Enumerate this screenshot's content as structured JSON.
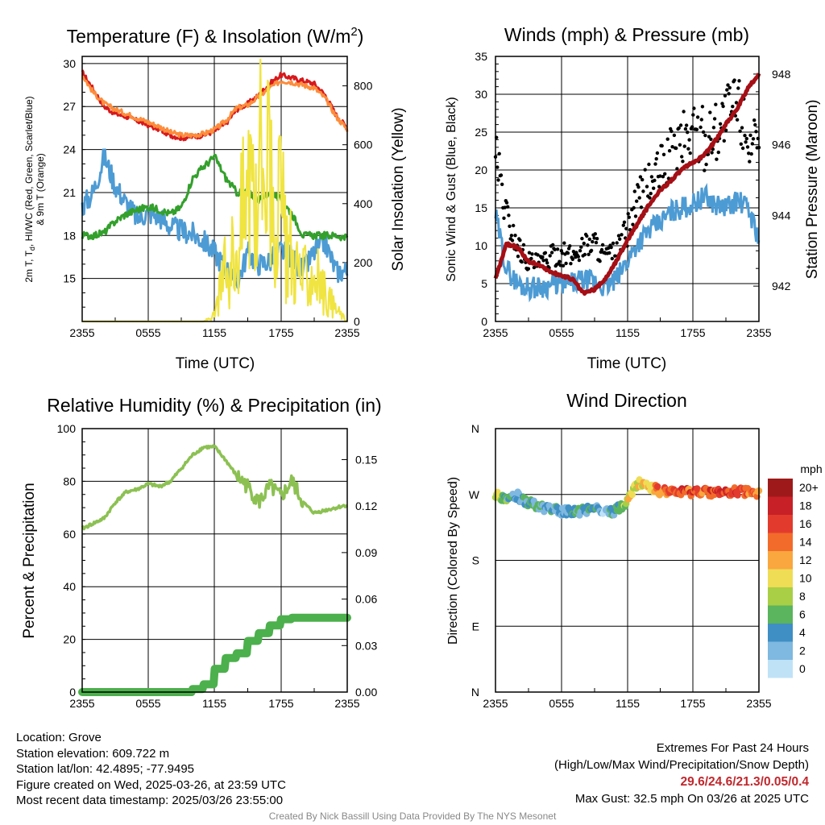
{
  "chart_data": [
    {
      "type": "line",
      "title": "Temperature (F) & Insolation (W/m²)",
      "title_main": "Temperature (F) & Insolation (W/m",
      "title_sup": "2",
      "title_end": ")",
      "xlabel": "Time (UTC)",
      "ylabel_line1": "2m T, T",
      "ylabel_sub": "d",
      "ylabel_line1_end": ", HI/WC (Red, Green, Scarlet/Blue)",
      "ylabel_line2": "& 9m T (Orange)",
      "y2label": "Solar Insolation (Yellow)",
      "x_ticks": [
        "2355",
        "0555",
        "1155",
        "1755",
        "2355"
      ],
      "y_ticks": [
        "15",
        "18",
        "21",
        "24",
        "27",
        "30"
      ],
      "y2_ticks": [
        "0",
        "200",
        "400",
        "600",
        "800"
      ],
      "ylim": [
        12,
        30.5
      ],
      "y2lim": [
        0,
        900
      ],
      "hours": [
        0,
        1,
        2,
        3,
        4,
        5,
        6,
        7,
        8,
        9,
        10,
        11,
        12,
        13,
        14,
        15,
        16,
        17,
        18,
        19,
        20,
        21,
        22,
        23,
        24
      ],
      "series": [
        {
          "color": "#d7191c",
          "values": [
            29.4,
            28.2,
            27.0,
            26.5,
            26.3,
            26.0,
            25.7,
            25.4,
            25.0,
            24.8,
            24.9,
            25.0,
            25.3,
            25.8,
            26.8,
            27.2,
            27.8,
            28.6,
            29.2,
            29.0,
            28.8,
            28.6,
            27.8,
            26.4,
            25.5
          ]
        },
        {
          "color": "#fd8d3c",
          "values": [
            29.2,
            28.0,
            27.2,
            26.8,
            26.5,
            26.2,
            25.9,
            25.6,
            25.2,
            25.0,
            25.0,
            25.1,
            25.4,
            26.0,
            26.9,
            27.1,
            27.7,
            28.3,
            28.8,
            28.7,
            28.5,
            28.3,
            27.6,
            26.3,
            25.4
          ]
        },
        {
          "color": "#4d9bd4",
          "values": [
            20.0,
            21.0,
            23.5,
            21.5,
            20.2,
            19.2,
            19.6,
            19.3,
            18.6,
            18.3,
            18.1,
            17.6,
            16.8,
            15.7,
            14.7,
            16.8,
            16.0,
            16.2,
            17.0,
            16.5,
            15.5,
            16.8,
            17.5,
            15.5,
            15.5
          ]
        },
        {
          "color": "#33a02c",
          "values": [
            18.0,
            18.0,
            18.2,
            19.0,
            19.5,
            19.8,
            20.0,
            19.8,
            19.5,
            20.0,
            22.0,
            22.8,
            23.5,
            22.0,
            21.0,
            21.0,
            20.5,
            21.0,
            20.5,
            19.5,
            18.0,
            18.0,
            18.0,
            18.0,
            17.8
          ]
        },
        {
          "color": "#f0e442",
          "axis": "y2",
          "values": [
            0,
            0,
            0,
            0,
            0,
            0,
            0,
            0,
            0,
            0,
            0,
            0,
            20,
            180,
            260,
            450,
            600,
            520,
            350,
            220,
            140,
            170,
            90,
            40,
            0
          ]
        }
      ]
    },
    {
      "type": "scatter",
      "title": "Winds (mph) & Pressure (mb)",
      "xlabel": "Time (UTC)",
      "ylabel": "Sonic Wind & Gust (Blue, Black)",
      "y2label": "Station Pressure (Maroon)",
      "x_ticks": [
        "2355",
        "0555",
        "1155",
        "1755",
        "2355"
      ],
      "y_ticks": [
        "0",
        "5",
        "10",
        "15",
        "20",
        "25",
        "30",
        "35"
      ],
      "y2_ticks": [
        "942",
        "944",
        "946",
        "948"
      ],
      "ylim": [
        0,
        35
      ],
      "y2lim": [
        941,
        948.5
      ],
      "hours": [
        0,
        1,
        2,
        3,
        4,
        5,
        6,
        7,
        8,
        9,
        10,
        11,
        12,
        13,
        14,
        15,
        16,
        17,
        18,
        19,
        20,
        21,
        22,
        23,
        24
      ],
      "series": [
        {
          "color": "#4d9bd4",
          "values": [
            14.0,
            7.0,
            5.0,
            4.5,
            4.5,
            4.8,
            5.0,
            5.0,
            5.5,
            5.2,
            4.5,
            5.5,
            8.0,
            10.5,
            12.0,
            13.0,
            14.5,
            15.0,
            15.5,
            16.5,
            15.5,
            15.0,
            16.0,
            15.0,
            11.0
          ]
        },
        {
          "color": "#000000",
          "values": [
            22.0,
            14.0,
            10.0,
            8.0,
            7.5,
            8.5,
            9.0,
            8.5,
            10.0,
            10.5,
            8.5,
            9.0,
            12.0,
            16.0,
            18.0,
            20.0,
            22.0,
            24.0,
            25.5,
            24.0,
            25.5,
            27.0,
            29.0,
            25.0,
            21.0
          ]
        },
        {
          "color": "#a50f15",
          "axis": "y2",
          "values": [
            942.2,
            943.2,
            943.1,
            942.7,
            942.6,
            942.4,
            942.3,
            942.2,
            941.8,
            941.9,
            942.2,
            942.7,
            943.3,
            943.8,
            944.3,
            944.7,
            945.0,
            945.3,
            945.5,
            945.7,
            946.1,
            946.6,
            947.0,
            947.6,
            948.0
          ]
        }
      ]
    },
    {
      "type": "line",
      "title": "Relative Humidity (%) & Precipitation (in)",
      "xlabel": "",
      "ylabel": "Percent & Precipitation",
      "x_ticks": [
        "2355",
        "0555",
        "1155",
        "1755",
        "2355"
      ],
      "y_ticks": [
        "0",
        "20",
        "40",
        "60",
        "80",
        "100"
      ],
      "y2_ticks": [
        "0.00",
        "0.03",
        "0.06",
        "0.09",
        "0.12",
        "0.15"
      ],
      "ylim": [
        0,
        100
      ],
      "y2lim": [
        0,
        0.17
      ],
      "hours": [
        0,
        1,
        2,
        3,
        4,
        5,
        6,
        7,
        8,
        9,
        10,
        11,
        12,
        13,
        14,
        15,
        16,
        17,
        18,
        19,
        20,
        21,
        22,
        23,
        24
      ],
      "series": [
        {
          "color": "#8cc152",
          "values": [
            62,
            64,
            66,
            72,
            76,
            77,
            79,
            78,
            80,
            85,
            90,
            93,
            93,
            88,
            82,
            78,
            72,
            78,
            74,
            80,
            72,
            68,
            69,
            70,
            71
          ]
        },
        {
          "color": "#4cb04c",
          "axis": "y2",
          "values": [
            0,
            0,
            0,
            0,
            0,
            0,
            0,
            0,
            0,
            0,
            0.002,
            0.005,
            0.015,
            0.022,
            0.025,
            0.033,
            0.038,
            0.043,
            0.047,
            0.048,
            0.048,
            0.048,
            0.048,
            0.048,
            0.048
          ]
        }
      ]
    },
    {
      "type": "scatter",
      "title": "Wind Direction",
      "xlabel": "",
      "ylabel": "Direction (Colored By Speed)",
      "x_ticks": [
        "2355",
        "0555",
        "1155",
        "1755",
        "2355"
      ],
      "y_ticks": [
        "N",
        "E",
        "S",
        "W",
        "N"
      ],
      "ylim": [
        0,
        360
      ],
      "hours": [
        0,
        1,
        2,
        3,
        4,
        5,
        6,
        7,
        8,
        9,
        10,
        11,
        12,
        13,
        14,
        15,
        16,
        17,
        18,
        19,
        20,
        21,
        22,
        23,
        24
      ],
      "directions": [
        268,
        266,
        268,
        258,
        254,
        250,
        247,
        246,
        248,
        252,
        246,
        248,
        262,
        285,
        280,
        275,
        272,
        272,
        273,
        274,
        273,
        272,
        275,
        273,
        270
      ],
      "speeds": [
        12,
        6,
        4,
        5,
        5,
        5,
        4,
        6,
        4,
        5,
        3,
        5,
        10,
        11,
        12,
        15,
        16,
        17,
        16,
        15,
        17,
        18,
        17,
        16,
        14
      ],
      "colorbar": {
        "label": "mph",
        "labels": [
          "20+",
          "18",
          "16",
          "14",
          "12",
          "10",
          "8",
          "6",
          "4",
          "2",
          "0"
        ],
        "colors": [
          "#9e1a1a",
          "#c72026",
          "#e23b2e",
          "#f26b2a",
          "#f9a73e",
          "#eedd55",
          "#a8cf45",
          "#5bb45e",
          "#3f8fc4",
          "#7fb8e0",
          "#bfe2f7"
        ]
      }
    }
  ],
  "footer": {
    "location": "Location: Grove",
    "elevation": "Station elevation: 609.722 m",
    "latlon": "Station lat/lon: 42.4895; -77.9495",
    "created": "Figure created on Wed, 2025-03-26, at 23:59 UTC",
    "recent": "Most recent data timestamp: 2025/03/26 23:55:00",
    "extremes_title": "Extremes For Past 24 Hours",
    "extremes_legend": "(High/Low/Max Wind/Precipitation/Snow Depth)",
    "extremes_values": "29.6/24.6/21.3/0.05/0.4",
    "max_gust": "Max Gust: 32.5 mph On 03/26 at 2025 UTC",
    "credit": "Created By Nick Bassill Using Data Provided By The NYS Mesonet"
  }
}
